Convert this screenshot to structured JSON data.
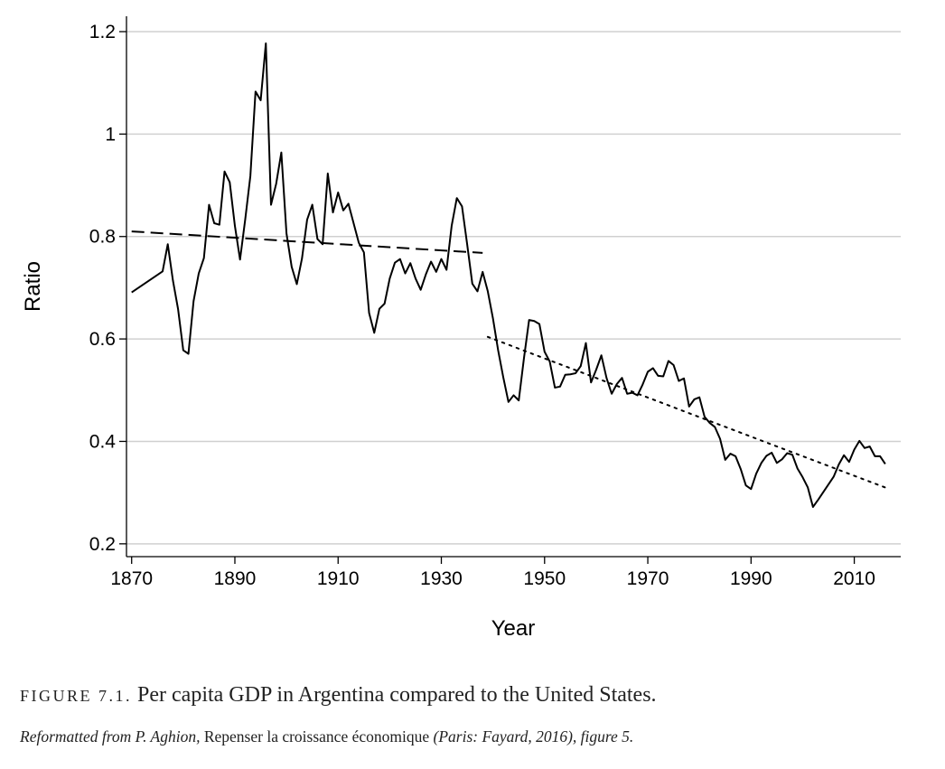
{
  "chart_data": {
    "type": "line",
    "xlabel": "Year",
    "ylabel": "Ratio",
    "xlim": [
      1869,
      2019
    ],
    "ylim": [
      0.175,
      1.23
    ],
    "x_ticks": [
      1870,
      1890,
      1910,
      1930,
      1950,
      1970,
      1990,
      2010
    ],
    "y_ticks": [
      0.2,
      0.4,
      0.6,
      0.8,
      1
    ],
    "y_tick_labels": [
      "0.2",
      "0.4",
      "0.6",
      "0.8",
      "1",
      "1.2"
    ],
    "y_tick_values": [
      0.2,
      0.4,
      0.6,
      0.8,
      1.0,
      1.2
    ],
    "grid": true,
    "series": [
      {
        "style": "solid",
        "color": "#000000",
        "points": [
          [
            1870,
            0.691
          ],
          [
            1876,
            0.732
          ],
          [
            1877,
            0.785
          ],
          [
            1878,
            0.714
          ],
          [
            1879,
            0.658
          ],
          [
            1880,
            0.578
          ],
          [
            1881,
            0.571
          ],
          [
            1882,
            0.674
          ],
          [
            1883,
            0.728
          ],
          [
            1884,
            0.758
          ],
          [
            1885,
            0.862
          ],
          [
            1886,
            0.826
          ],
          [
            1887,
            0.823
          ],
          [
            1888,
            0.927
          ],
          [
            1889,
            0.906
          ],
          [
            1890,
            0.821
          ],
          [
            1891,
            0.755
          ],
          [
            1892,
            0.833
          ],
          [
            1893,
            0.918
          ],
          [
            1894,
            1.083
          ],
          [
            1895,
            1.066
          ],
          [
            1896,
            1.177
          ],
          [
            1897,
            0.862
          ],
          [
            1898,
            0.903
          ],
          [
            1899,
            0.964
          ],
          [
            1900,
            0.806
          ],
          [
            1901,
            0.741
          ],
          [
            1902,
            0.707
          ],
          [
            1903,
            0.757
          ],
          [
            1904,
            0.833
          ],
          [
            1905,
            0.862
          ],
          [
            1906,
            0.795
          ],
          [
            1907,
            0.785
          ],
          [
            1908,
            0.923
          ],
          [
            1909,
            0.847
          ],
          [
            1910,
            0.886
          ],
          [
            1911,
            0.851
          ],
          [
            1912,
            0.864
          ],
          [
            1913,
            0.826
          ],
          [
            1914,
            0.788
          ],
          [
            1915,
            0.769
          ],
          [
            1916,
            0.651
          ],
          [
            1917,
            0.612
          ],
          [
            1918,
            0.659
          ],
          [
            1919,
            0.669
          ],
          [
            1920,
            0.718
          ],
          [
            1921,
            0.749
          ],
          [
            1922,
            0.756
          ],
          [
            1923,
            0.728
          ],
          [
            1924,
            0.748
          ],
          [
            1925,
            0.718
          ],
          [
            1926,
            0.696
          ],
          [
            1927,
            0.726
          ],
          [
            1928,
            0.751
          ],
          [
            1929,
            0.731
          ],
          [
            1930,
            0.756
          ],
          [
            1931,
            0.735
          ],
          [
            1932,
            0.821
          ],
          [
            1933,
            0.875
          ],
          [
            1934,
            0.859
          ],
          [
            1935,
            0.785
          ],
          [
            1936,
            0.708
          ],
          [
            1937,
            0.693
          ],
          [
            1938,
            0.731
          ],
          [
            1939,
            0.693
          ],
          [
            1940,
            0.64
          ],
          [
            1941,
            0.578
          ],
          [
            1942,
            0.525
          ],
          [
            1943,
            0.477
          ],
          [
            1944,
            0.49
          ],
          [
            1945,
            0.48
          ],
          [
            1946,
            0.562
          ],
          [
            1947,
            0.637
          ],
          [
            1948,
            0.635
          ],
          [
            1949,
            0.629
          ],
          [
            1950,
            0.575
          ],
          [
            1951,
            0.556
          ],
          [
            1952,
            0.505
          ],
          [
            1953,
            0.507
          ],
          [
            1954,
            0.53
          ],
          [
            1955,
            0.531
          ],
          [
            1956,
            0.533
          ],
          [
            1957,
            0.547
          ],
          [
            1958,
            0.592
          ],
          [
            1959,
            0.515
          ],
          [
            1960,
            0.54
          ],
          [
            1961,
            0.568
          ],
          [
            1962,
            0.524
          ],
          [
            1963,
            0.493
          ],
          [
            1964,
            0.512
          ],
          [
            1965,
            0.524
          ],
          [
            1966,
            0.493
          ],
          [
            1967,
            0.495
          ],
          [
            1968,
            0.49
          ],
          [
            1969,
            0.511
          ],
          [
            1970,
            0.536
          ],
          [
            1971,
            0.543
          ],
          [
            1972,
            0.528
          ],
          [
            1973,
            0.527
          ],
          [
            1974,
            0.557
          ],
          [
            1975,
            0.549
          ],
          [
            1976,
            0.518
          ],
          [
            1977,
            0.523
          ],
          [
            1978,
            0.468
          ],
          [
            1979,
            0.482
          ],
          [
            1980,
            0.486
          ],
          [
            1981,
            0.448
          ],
          [
            1982,
            0.436
          ],
          [
            1983,
            0.428
          ],
          [
            1984,
            0.405
          ],
          [
            1985,
            0.364
          ],
          [
            1986,
            0.376
          ],
          [
            1987,
            0.371
          ],
          [
            1988,
            0.346
          ],
          [
            1989,
            0.314
          ],
          [
            1990,
            0.307
          ],
          [
            1991,
            0.337
          ],
          [
            1992,
            0.358
          ],
          [
            1993,
            0.372
          ],
          [
            1994,
            0.378
          ],
          [
            1995,
            0.358
          ],
          [
            1996,
            0.365
          ],
          [
            1997,
            0.377
          ],
          [
            1998,
            0.374
          ],
          [
            1999,
            0.347
          ],
          [
            2000,
            0.33
          ],
          [
            2001,
            0.31
          ],
          [
            2002,
            0.272
          ],
          [
            2003,
            0.286
          ],
          [
            2004,
            0.301
          ],
          [
            2005,
            0.316
          ],
          [
            2006,
            0.331
          ],
          [
            2007,
            0.355
          ],
          [
            2008,
            0.373
          ],
          [
            2009,
            0.36
          ],
          [
            2010,
            0.384
          ],
          [
            2011,
            0.401
          ],
          [
            2012,
            0.387
          ],
          [
            2013,
            0.39
          ],
          [
            2014,
            0.371
          ],
          [
            2015,
            0.371
          ],
          [
            2016,
            0.356
          ]
        ]
      },
      {
        "style": "dashed",
        "color": "#000000",
        "points": [
          [
            1870,
            0.81
          ],
          [
            1938,
            0.768
          ]
        ]
      },
      {
        "style": "dotted",
        "color": "#000000",
        "points": [
          [
            1939,
            0.604
          ],
          [
            2016,
            0.31
          ]
        ]
      }
    ]
  },
  "caption": {
    "figure_label": "FIGURE 7.1.",
    "text": "Per capita GDP in Argentina compared to the United States."
  },
  "source": {
    "prefix": "Reformatted from P. Aghion,",
    "book_title": "Repenser la croissance économique",
    "suffix": "(Paris: Fayard, 2016), figure 5."
  }
}
